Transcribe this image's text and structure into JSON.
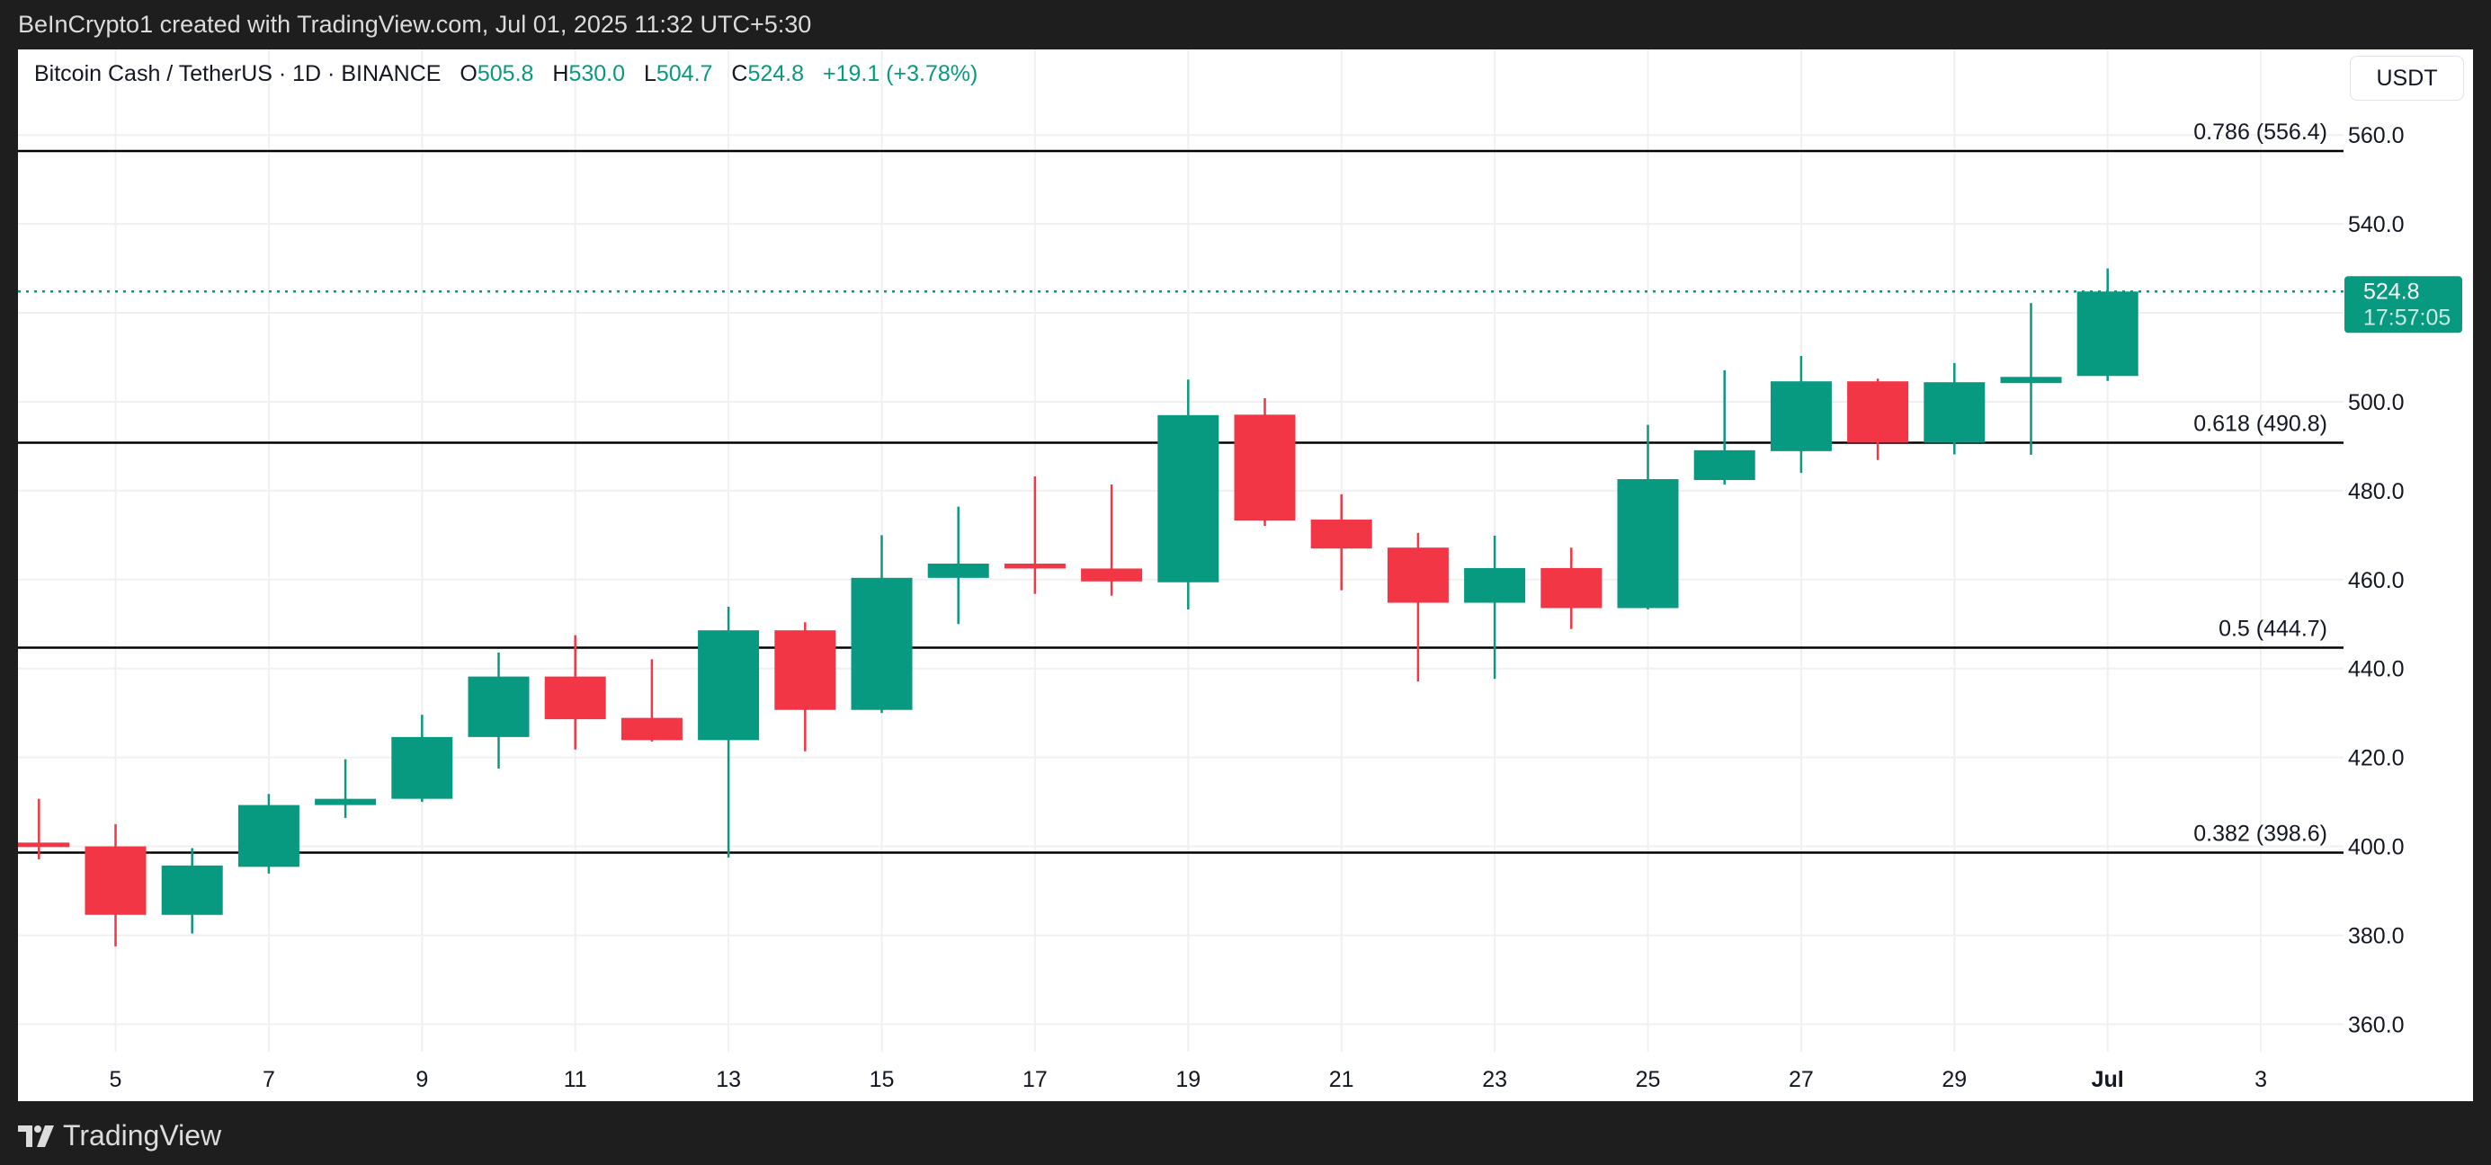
{
  "topbar": {
    "attribution": "BeInCrypto1 created with TradingView.com, Jul 01, 2025 11:32 UTC+5:30"
  },
  "legend": {
    "symbol": "Bitcoin Cash / TetherUS · 1D · BINANCE",
    "o_label": "O",
    "o_value": "505.8",
    "h_label": "H",
    "h_value": "530.0",
    "l_label": "L",
    "l_value": "504.7",
    "c_label": "C",
    "c_value": "524.8",
    "change": "+19.1 (+3.78%)"
  },
  "currency_button": "USDT",
  "footer": {
    "brand": "TradingView"
  },
  "colors": {
    "up": "#089981",
    "down": "#f23645",
    "fib_line": "#000000",
    "grid": "#f0f0f0"
  },
  "chart_data": {
    "type": "candlestick",
    "title": "Bitcoin Cash / TetherUS · 1D · BINANCE",
    "ylim": [
      350,
      570
    ],
    "grid": true,
    "y_ticks": [
      "560.0",
      "540.0",
      "520.0",
      "500.0",
      "480.0",
      "460.0",
      "440.0",
      "420.0",
      "400.0",
      "380.0",
      "360.0"
    ],
    "y_tick_values": [
      560,
      540,
      520,
      500,
      480,
      460,
      440,
      420,
      400,
      380,
      360
    ],
    "y_tick_labels_shown": [
      "560.0",
      "540.0",
      "500.0",
      "480.0",
      "460.0",
      "440.0",
      "420.0",
      "400.0",
      "380.0",
      "360.0"
    ],
    "x_ticks": [
      {
        "label": "5",
        "index": 1
      },
      {
        "label": "7",
        "index": 3
      },
      {
        "label": "9",
        "index": 5
      },
      {
        "label": "11",
        "index": 7
      },
      {
        "label": "13",
        "index": 9
      },
      {
        "label": "15",
        "index": 11
      },
      {
        "label": "17",
        "index": 13
      },
      {
        "label": "19",
        "index": 15
      },
      {
        "label": "21",
        "index": 17
      },
      {
        "label": "23",
        "index": 19
      },
      {
        "label": "25",
        "index": 21
      },
      {
        "label": "27",
        "index": 23
      },
      {
        "label": "29",
        "index": 25
      },
      {
        "label": "Jul",
        "index": 27,
        "bold": true
      },
      {
        "label": "3",
        "index": 29
      }
    ],
    "candles": [
      {
        "date": "2025-06-04",
        "open": 400.7,
        "high": 410.7,
        "low": 397.1,
        "close": 400.0
      },
      {
        "date": "2025-06-05",
        "open": 400.0,
        "high": 405.0,
        "low": 377.5,
        "close": 384.6
      },
      {
        "date": "2025-06-06",
        "open": 384.6,
        "high": 399.6,
        "low": 380.4,
        "close": 395.7
      },
      {
        "date": "2025-06-07",
        "open": 395.4,
        "high": 411.8,
        "low": 393.9,
        "close": 409.3
      },
      {
        "date": "2025-06-08",
        "open": 409.3,
        "high": 419.6,
        "low": 406.4,
        "close": 410.7
      },
      {
        "date": "2025-06-09",
        "open": 410.7,
        "high": 429.6,
        "low": 410.0,
        "close": 424.6
      },
      {
        "date": "2025-06-10",
        "open": 424.6,
        "high": 443.6,
        "low": 417.5,
        "close": 438.2
      },
      {
        "date": "2025-06-11",
        "open": 438.2,
        "high": 447.5,
        "low": 421.8,
        "close": 428.6
      },
      {
        "date": "2025-06-12",
        "open": 428.9,
        "high": 442.1,
        "low": 423.6,
        "close": 423.9
      },
      {
        "date": "2025-06-13",
        "open": 423.9,
        "high": 453.9,
        "low": 397.5,
        "close": 448.6
      },
      {
        "date": "2025-06-14",
        "open": 448.6,
        "high": 450.4,
        "low": 421.4,
        "close": 430.7
      },
      {
        "date": "2025-06-15",
        "open": 430.7,
        "high": 470.0,
        "low": 430.0,
        "close": 460.4
      },
      {
        "date": "2025-06-16",
        "open": 460.4,
        "high": 476.4,
        "low": 450.0,
        "close": 463.6
      },
      {
        "date": "2025-06-17",
        "open": 463.6,
        "high": 483.2,
        "low": 456.8,
        "close": 462.5
      },
      {
        "date": "2025-06-18",
        "open": 462.5,
        "high": 481.4,
        "low": 456.4,
        "close": 459.6
      },
      {
        "date": "2025-06-19",
        "open": 459.4,
        "high": 505.0,
        "low": 453.3,
        "close": 497.0
      },
      {
        "date": "2025-06-20",
        "open": 497.1,
        "high": 500.8,
        "low": 472.1,
        "close": 473.3
      },
      {
        "date": "2025-06-21",
        "open": 473.5,
        "high": 479.2,
        "low": 457.6,
        "close": 467.0
      },
      {
        "date": "2025-06-22",
        "open": 467.2,
        "high": 470.5,
        "low": 437.1,
        "close": 454.8
      },
      {
        "date": "2025-06-23",
        "open": 454.8,
        "high": 469.9,
        "low": 437.7,
        "close": 462.6
      },
      {
        "date": "2025-06-24",
        "open": 462.6,
        "high": 467.2,
        "low": 448.9,
        "close": 453.6
      },
      {
        "date": "2025-06-25",
        "open": 453.6,
        "high": 494.8,
        "low": 453.3,
        "close": 482.6
      },
      {
        "date": "2025-06-26",
        "open": 482.4,
        "high": 507.1,
        "low": 481.4,
        "close": 489.1
      },
      {
        "date": "2025-06-27",
        "open": 488.9,
        "high": 510.3,
        "low": 484.0,
        "close": 504.6
      },
      {
        "date": "2025-06-28",
        "open": 504.6,
        "high": 505.2,
        "low": 486.9,
        "close": 490.8
      },
      {
        "date": "2025-06-29",
        "open": 490.8,
        "high": 508.7,
        "low": 488.2,
        "close": 504.4
      },
      {
        "date": "2025-06-30",
        "open": 504.2,
        "high": 522.2,
        "low": 488.1,
        "close": 505.6
      },
      {
        "date": "2025-07-01",
        "open": 505.8,
        "high": 530.0,
        "low": 504.7,
        "close": 524.8
      }
    ],
    "fib_levels": [
      {
        "label": "0.786 (556.4)",
        "price": 556.4
      },
      {
        "label": "0.618 (490.8)",
        "price": 490.8
      },
      {
        "label": "0.5 (444.7)",
        "price": 444.7
      },
      {
        "label": "0.382 (398.6)",
        "price": 398.6
      }
    ],
    "last_price": {
      "value": "524.8",
      "price": 524.8,
      "countdown": "17:57:05"
    }
  }
}
